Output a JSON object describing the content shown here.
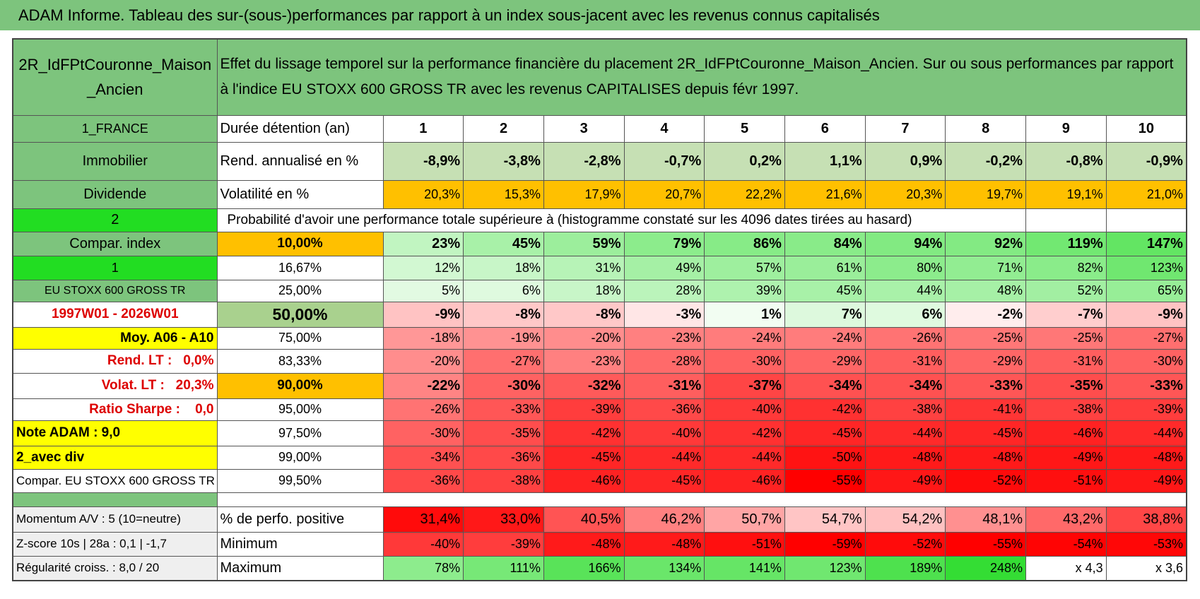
{
  "title": "ADAM Informe. Tableau des sur-(sous-)performances par rapport à un index sous-jacent avec les revenus connus capitalisés",
  "header": {
    "name": "2R_IdFPtCouronne_Maison_Ancien",
    "description": "Effet du lissage temporel sur la performance financière du placement 2R_IdFPtCouronne_Maison_Ancien. Sur ou sous performances par rapport à l'indice EU STOXX 600 GROSS TR avec les revenus CAPITALISES depuis févr 1997."
  },
  "table": {
    "rows": [
      [
        "1_FRANCE",
        "Durée détention (an)",
        "1",
        "2",
        "3",
        "4",
        "5",
        "6",
        "7",
        "8",
        "9",
        "10"
      ],
      [
        "Immobilier",
        "Rend. annualisé en %",
        "-8,9%",
        "-3,8%",
        "-2,8%",
        "-0,7%",
        "0,2%",
        "1,1%",
        "0,9%",
        "-0,2%",
        "-0,8%",
        "-0,9%"
      ],
      [
        "Dividende",
        "Volatilité en %",
        "20,3%",
        "15,3%",
        "17,9%",
        "20,7%",
        "22,2%",
        "21,6%",
        "20,3%",
        "19,7%",
        "19,1%",
        "21,0%"
      ],
      [
        "2",
        "Probabilité d'avoir une performance totale supérieure à (histogramme constaté sur les 4096 dates tirées au hasard)"
      ],
      [
        "Compar. index",
        "10,00%",
        "23%",
        "45%",
        "59%",
        "79%",
        "86%",
        "84%",
        "94%",
        "92%",
        "119%",
        "147%"
      ],
      [
        "1",
        "16,67%",
        "12%",
        "18%",
        "31%",
        "49%",
        "57%",
        "61%",
        "80%",
        "71%",
        "82%",
        "123%"
      ],
      [
        "EU STOXX 600 GROSS TR",
        "25,00%",
        "5%",
        "6%",
        "18%",
        "28%",
        "39%",
        "45%",
        "44%",
        "48%",
        "52%",
        "65%"
      ],
      [
        "1997W01 - 2026W01",
        "50,00%",
        "-9%",
        "-8%",
        "-8%",
        "-3%",
        "1%",
        "7%",
        "6%",
        "-2%",
        "-7%",
        "-9%"
      ],
      [
        "Moy. A06 - A10",
        "75,00%",
        "-18%",
        "-19%",
        "-20%",
        "-23%",
        "-24%",
        "-24%",
        "-26%",
        "-25%",
        "-25%",
        "-27%"
      ],
      [
        "Rend. LT :   0,0%",
        "83,33%",
        "-20%",
        "-27%",
        "-23%",
        "-28%",
        "-30%",
        "-29%",
        "-31%",
        "-29%",
        "-31%",
        "-30%"
      ],
      [
        "Volat. LT :   20,3%",
        "90,00%",
        "-22%",
        "-30%",
        "-32%",
        "-31%",
        "-37%",
        "-34%",
        "-34%",
        "-33%",
        "-35%",
        "-33%"
      ],
      [
        "Ratio Sharpe :    0,0",
        "95,00%",
        "-26%",
        "-33%",
        "-39%",
        "-36%",
        "-40%",
        "-42%",
        "-38%",
        "-41%",
        "-38%",
        "-39%"
      ],
      [
        "Note ADAM : 9,0",
        "97,50%",
        "-30%",
        "-35%",
        "-42%",
        "-40%",
        "-42%",
        "-45%",
        "-44%",
        "-45%",
        "-46%",
        "-44%"
      ],
      [
        "2_avec div",
        "99,00%",
        "-34%",
        "-36%",
        "-45%",
        "-44%",
        "-44%",
        "-50%",
        "-48%",
        "-48%",
        "-49%",
        "-48%"
      ],
      [
        "Compar. EU STOXX 600 GROSS TR",
        "99,50%",
        "-36%",
        "-38%",
        "-46%",
        "-45%",
        "-46%",
        "-55%",
        "-49%",
        "-52%",
        "-51%",
        "-49%"
      ],
      [],
      [
        "Momentum A/V : 5 (10=neutre)",
        "% de perfo. positive",
        "31,4%",
        "33,0%",
        "40,5%",
        "46,2%",
        "50,7%",
        "54,7%",
        "54,2%",
        "48,1%",
        "43,2%",
        "38,8%"
      ],
      [
        "Z-score 10s | 28a : 0,1 | -1,7",
        "Minimum",
        "-40%",
        "-39%",
        "-48%",
        "-48%",
        "-51%",
        "-59%",
        "-52%",
        "-55%",
        "-54%",
        "-53%"
      ],
      [
        "Régularité croiss. : 8,0 / 20",
        "Maximum",
        "78%",
        "111%",
        "166%",
        "134%",
        "141%",
        "123%",
        "189%",
        "248%",
        "x 4,3",
        "x 3,6"
      ]
    ]
  }
}
